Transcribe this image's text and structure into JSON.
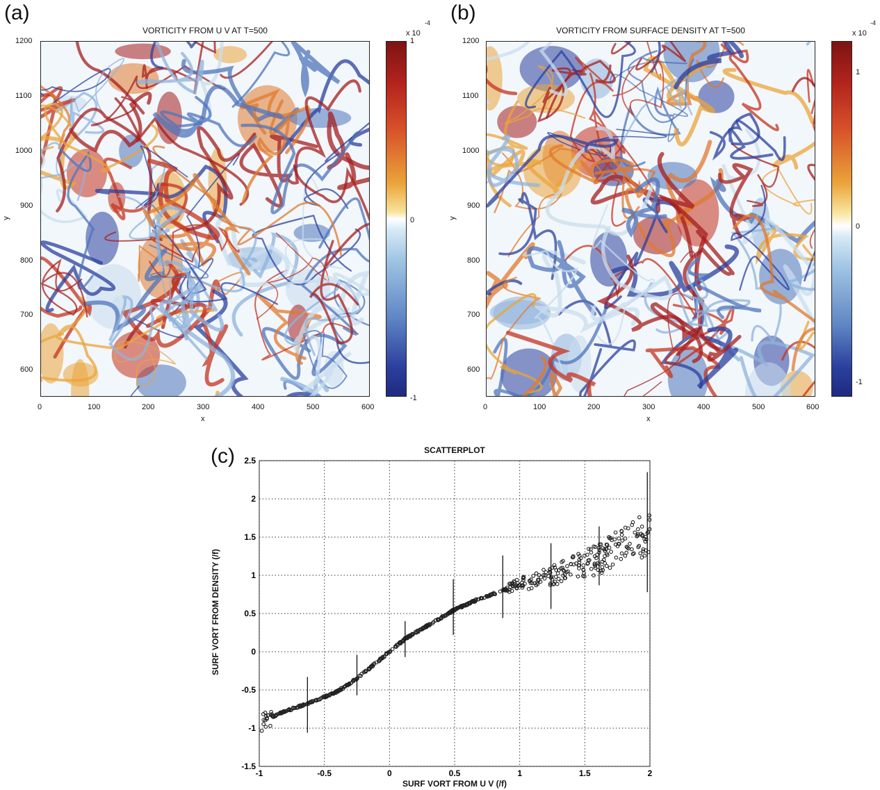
{
  "panels": [
    {
      "letter": "(a)",
      "title": "VORTICITY FROM U V AT T=500",
      "xlabel": "x",
      "ylabel": "y",
      "xticks": [
        "0",
        "100",
        "200",
        "300",
        "400",
        "500",
        "600"
      ],
      "yticks": [
        "1200",
        "1100",
        "1000",
        "900",
        "800",
        "700",
        "600"
      ],
      "colorbar": {
        "exponent": "x 10",
        "power": "-4",
        "ticks": [
          "1",
          "0",
          "-1"
        ]
      }
    },
    {
      "letter": "(b)",
      "title": "VORTICITY FROM SURFACE DENSITY AT T=500",
      "xlabel": "x",
      "ylabel": "y",
      "xticks": [
        "0",
        "100",
        "200",
        "300",
        "400",
        "500",
        "600"
      ],
      "yticks": [
        "1200",
        "1100",
        "1000",
        "900",
        "800",
        "700",
        "600"
      ],
      "colorbar": {
        "exponent": "x 10",
        "power": "-4",
        "ticks": [
          "1",
          "0",
          "-1"
        ]
      }
    }
  ],
  "scatter": {
    "letter": "(c)",
    "title": "SCATTERPLOT",
    "xlabel": "SURF VORT FROM U V (/f)",
    "ylabel": "SURF VORT FROM DENSITY (/f)",
    "xticks": [
      "-1",
      "-0.5",
      "0",
      "0.5",
      "1",
      "1.5",
      "2"
    ],
    "yticks": [
      "2.5",
      "2",
      "1.5",
      "1",
      "0.5",
      "0",
      "-0.5",
      "-1",
      "-1.5"
    ]
  },
  "colors": {
    "positive": "#a51d1d",
    "negative": "#2b3f9e",
    "neutral": "#ffffff",
    "mid_warm": "#e9a43a",
    "mid_cool": "#8fb3dc"
  },
  "chart_data": [
    {
      "type": "heatmap",
      "title": "VORTICITY FROM U V AT T=500",
      "xlabel": "x",
      "ylabel": "y",
      "xlim": [
        0,
        600
      ],
      "ylim": [
        550,
        1200
      ],
      "clim": [
        -1,
        1
      ],
      "color_scale_exponent": -4,
      "colormap": "blue-white-red"
    },
    {
      "type": "heatmap",
      "title": "VORTICITY FROM SURFACE DENSITY AT T=500",
      "xlabel": "x",
      "ylabel": "y",
      "xlim": [
        0,
        600
      ],
      "ylim": [
        550,
        1200
      ],
      "clim": [
        -1.2,
        1.2
      ],
      "color_scale_exponent": -4,
      "colormap": "blue-white-red"
    },
    {
      "type": "scatter",
      "title": "SCATTERPLOT",
      "xlabel": "SURF VORT FROM U V (/f)",
      "ylabel": "SURF VORT FROM DENSITY (/f)",
      "xlim": [
        -1,
        2
      ],
      "ylim": [
        -1.5,
        2.5
      ],
      "grid": true,
      "trend": {
        "x": [
          -1.0,
          -0.8,
          -0.6,
          -0.4,
          -0.25,
          -0.1,
          0.0,
          0.12,
          0.3,
          0.5,
          0.7,
          0.87,
          1.0,
          1.24,
          1.45,
          1.62,
          1.8,
          2.0
        ],
        "y": [
          -0.92,
          -0.78,
          -0.66,
          -0.52,
          -0.35,
          -0.14,
          0.0,
          0.17,
          0.35,
          0.55,
          0.7,
          0.8,
          0.88,
          1.0,
          1.12,
          1.22,
          1.38,
          1.55
        ]
      },
      "error_bars": [
        {
          "x": -0.63,
          "y": -0.68,
          "low": -1.06,
          "high": -0.33
        },
        {
          "x": -0.25,
          "y": -0.28,
          "low": -0.57,
          "high": -0.04
        },
        {
          "x": 0.12,
          "y": 0.17,
          "low": -0.07,
          "high": 0.4
        },
        {
          "x": 0.49,
          "y": 0.57,
          "low": 0.22,
          "high": 0.95
        },
        {
          "x": 0.87,
          "y": 0.8,
          "low": 0.44,
          "high": 1.26
        },
        {
          "x": 1.24,
          "y": 1.0,
          "low": 0.56,
          "high": 1.42
        },
        {
          "x": 1.61,
          "y": 1.22,
          "low": 0.87,
          "high": 1.64
        },
        {
          "x": 1.98,
          "y": 1.56,
          "low": 0.78,
          "high": 2.35
        }
      ]
    }
  ]
}
